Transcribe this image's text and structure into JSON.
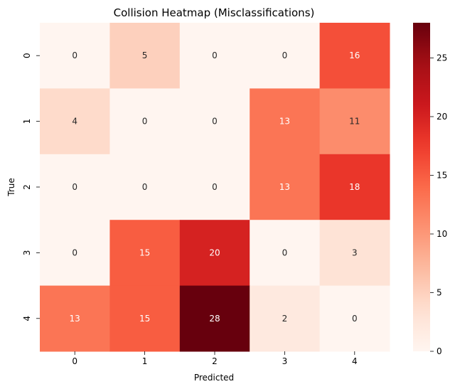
{
  "chart_data": {
    "type": "heatmap",
    "title": "Collision Heatmap (Misclassifications)",
    "xlabel": "Predicted",
    "ylabel": "True",
    "x_categories": [
      "0",
      "1",
      "2",
      "3",
      "4"
    ],
    "y_categories": [
      "0",
      "1",
      "2",
      "3",
      "4"
    ],
    "values": [
      [
        0,
        5,
        0,
        0,
        16
      ],
      [
        4,
        0,
        0,
        13,
        11
      ],
      [
        0,
        0,
        0,
        13,
        18
      ],
      [
        0,
        15,
        20,
        0,
        3
      ],
      [
        13,
        15,
        28,
        2,
        0
      ]
    ],
    "colormap": "Reds",
    "vmin": 0,
    "vmax": 28,
    "colorbar_ticks": [
      0,
      5,
      10,
      15,
      20,
      25
    ],
    "colorbar_tick_labels": [
      "0",
      "5",
      "10",
      "15",
      "20",
      "25"
    ],
    "annotation_colors": {
      "light": "#ffffff",
      "dark": "#262626"
    },
    "grid": false
  }
}
